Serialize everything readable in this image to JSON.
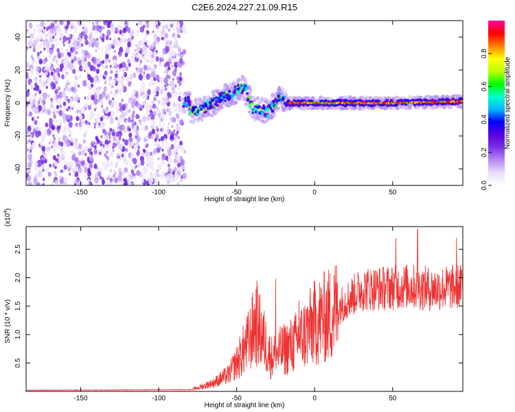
{
  "page": {
    "title": "C2E6.2024.227.21.09.R15"
  },
  "colorbar": {
    "label": "Normalized spectral amplitude",
    "ticks": [
      "0.0",
      "0.2",
      "0.4",
      "0.6",
      "0.8"
    ],
    "colormap": [
      "#ffffff",
      "#e8dcfb",
      "#b888f2",
      "#7a32e6",
      "#5a00e0",
      "#0000ff",
      "#00b8ff",
      "#00ffc8",
      "#00ff00",
      "#c0ff00",
      "#ffff00",
      "#ff8000",
      "#ff0000",
      "#ff00a0"
    ]
  },
  "chart_data": [
    {
      "type": "heatmap",
      "title": "C2E6.2024.227.21.09.R15",
      "xlabel": "Height of straight line (km)",
      "ylabel": "Frequency (Hz)",
      "xlim": [
        -185,
        95
      ],
      "ylim": [
        -50,
        50
      ],
      "xticks": [
        -150,
        -100,
        -50,
        0,
        50
      ],
      "xtick_labels": [
        "-150",
        "-100",
        "-50",
        "0",
        "50"
      ],
      "yticks": [
        -40,
        -20,
        0,
        20,
        40
      ],
      "ytick_labels": [
        "-40",
        "-20",
        "0",
        "20",
        "40"
      ],
      "grid": false,
      "features": {
        "noise_region_x_km": [
          -185,
          -83
        ],
        "ridge": [
          {
            "x": -80,
            "y": -6
          },
          {
            "x": -70,
            "y": -3
          },
          {
            "x": -60,
            "y": 3
          },
          {
            "x": -52,
            "y": 6
          },
          {
            "x": -45,
            "y": 10
          },
          {
            "x": -40,
            "y": -3
          },
          {
            "x": -30,
            "y": -5
          },
          {
            "x": -22,
            "y": 3
          },
          {
            "x": -17,
            "y": 0
          },
          {
            "x": 0,
            "y": 0
          },
          {
            "x": 50,
            "y": 0
          },
          {
            "x": 95,
            "y": 1
          }
        ]
      }
    },
    {
      "type": "line",
      "xlabel": "Height of straight line (km)",
      "ylabel": "SNR (10 * v/v)",
      "y_multiplier_label": "(x10",
      "y_multiplier_exp": "4",
      "xlim": [
        -185,
        95
      ],
      "ylim": [
        0,
        2.9
      ],
      "xticks": [
        -150,
        -100,
        -50,
        0,
        50
      ],
      "xtick_labels": [
        "-150",
        "-100",
        "-50",
        "0",
        "50"
      ],
      "yticks": [
        0.5,
        1.0,
        1.5,
        2.0,
        2.5
      ],
      "ytick_labels": [
        "0.5",
        "1.0",
        "1.5",
        "2.0",
        "2.5"
      ],
      "grid": false,
      "series": [
        {
          "color": "#ee3333",
          "envelope": [
            {
              "x": -185,
              "y": 0.02
            },
            {
              "x": -80,
              "y": 0.03
            },
            {
              "x": -75,
              "y": 0.06
            },
            {
              "x": -65,
              "y": 0.15
            },
            {
              "x": -55,
              "y": 0.3
            },
            {
              "x": -48,
              "y": 0.6
            },
            {
              "x": -42,
              "y": 0.9
            },
            {
              "x": -38,
              "y": 1.2
            },
            {
              "x": -34,
              "y": 1.0
            },
            {
              "x": -28,
              "y": 0.6
            },
            {
              "x": -22,
              "y": 0.7
            },
            {
              "x": -15,
              "y": 0.8
            },
            {
              "x": -10,
              "y": 0.9
            },
            {
              "x": 0,
              "y": 1.2
            },
            {
              "x": 10,
              "y": 1.35
            },
            {
              "x": 20,
              "y": 1.6
            },
            {
              "x": 30,
              "y": 1.8
            },
            {
              "x": 45,
              "y": 1.82
            },
            {
              "x": 60,
              "y": 1.85
            },
            {
              "x": 75,
              "y": 1.8
            },
            {
              "x": 95,
              "y": 1.85
            }
          ],
          "peaks": [
            {
              "x": -37,
              "y": 1.95
            },
            {
              "x": -25,
              "y": 1.98
            },
            {
              "x": -10,
              "y": 1.6
            },
            {
              "x": 52,
              "y": 2.7
            },
            {
              "x": 66,
              "y": 2.85
            },
            {
              "x": 91,
              "y": 2.7
            }
          ]
        }
      ]
    }
  ]
}
